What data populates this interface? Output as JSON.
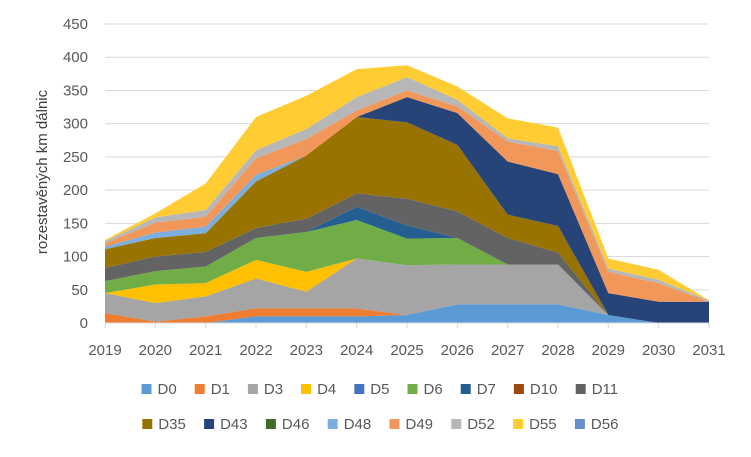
{
  "chart_data": {
    "type": "area",
    "stacked": true,
    "ylabel": "rozestavěných km dálnic",
    "xlabel": "",
    "title": "",
    "ylim": [
      0,
      450
    ],
    "yticks": [
      0,
      50,
      100,
      150,
      200,
      250,
      300,
      350,
      400,
      450
    ],
    "grid": true,
    "legend_position": "bottom",
    "x": [
      "2019",
      "2020",
      "2021",
      "2022",
      "2023",
      "2024",
      "2025",
      "2026",
      "2027",
      "2028",
      "2029",
      "2030",
      "2031"
    ],
    "series": [
      {
        "name": "D0",
        "color": "#5B9BD5",
        "values": [
          0,
          0,
          0,
          10,
          10,
          10,
          12,
          28,
          28,
          28,
          12,
          0,
          0
        ]
      },
      {
        "name": "D1",
        "color": "#ED7D31",
        "values": [
          15,
          2,
          10,
          12,
          12,
          12,
          0,
          0,
          0,
          0,
          0,
          0,
          0
        ]
      },
      {
        "name": "D3",
        "color": "#A5A5A5",
        "values": [
          30,
          28,
          30,
          45,
          25,
          75,
          75,
          60,
          60,
          60,
          0,
          0,
          0
        ]
      },
      {
        "name": "D4",
        "color": "#FFC000",
        "values": [
          0,
          28,
          20,
          28,
          30,
          0,
          0,
          0,
          0,
          0,
          0,
          0,
          0
        ]
      },
      {
        "name": "D5",
        "color": "#4472C4",
        "values": [
          0,
          0,
          0,
          0,
          0,
          0,
          0,
          0,
          0,
          0,
          0,
          0,
          0
        ]
      },
      {
        "name": "D6",
        "color": "#70AD47",
        "values": [
          18,
          20,
          25,
          33,
          60,
          58,
          40,
          40,
          0,
          0,
          0,
          0,
          0
        ]
      },
      {
        "name": "D7",
        "color": "#255E91",
        "values": [
          0,
          0,
          0,
          0,
          0,
          20,
          20,
          0,
          0,
          0,
          0,
          0,
          0
        ]
      },
      {
        "name": "D10",
        "color": "#9E480E",
        "values": [
          0,
          0,
          0,
          0,
          0,
          0,
          0,
          0,
          0,
          0,
          0,
          0,
          0
        ]
      },
      {
        "name": "D11",
        "color": "#636363",
        "values": [
          20,
          22,
          22,
          15,
          20,
          20,
          40,
          40,
          40,
          18,
          0,
          0,
          0
        ]
      },
      {
        "name": "D35",
        "color": "#997300",
        "values": [
          28,
          28,
          28,
          70,
          95,
          115,
          115,
          100,
          35,
          40,
          0,
          0,
          0
        ]
      },
      {
        "name": "D43",
        "color": "#264478",
        "values": [
          0,
          0,
          0,
          0,
          0,
          0,
          38,
          48,
          80,
          78,
          33,
          32,
          32
        ]
      },
      {
        "name": "D46",
        "color": "#43682B",
        "values": [
          0,
          0,
          0,
          0,
          0,
          0,
          0,
          0,
          0,
          0,
          0,
          0,
          0
        ]
      },
      {
        "name": "D48",
        "color": "#7CAFDD",
        "values": [
          4,
          8,
          10,
          10,
          0,
          0,
          0,
          0,
          0,
          0,
          0,
          0,
          0
        ]
      },
      {
        "name": "D49",
        "color": "#F1975A",
        "values": [
          5,
          15,
          15,
          25,
          25,
          10,
          10,
          10,
          30,
          35,
          32,
          28,
          0
        ]
      },
      {
        "name": "D52",
        "color": "#B7B7B7",
        "values": [
          3,
          8,
          10,
          12,
          15,
          20,
          20,
          10,
          5,
          7,
          5,
          5,
          2
        ]
      },
      {
        "name": "D55",
        "color": "#FFCD33",
        "values": [
          2,
          6,
          40,
          50,
          50,
          42,
          18,
          20,
          30,
          28,
          15,
          15,
          0
        ]
      },
      {
        "name": "D56",
        "color": "#698ED0",
        "values": [
          0,
          0,
          0,
          0,
          0,
          0,
          0,
          0,
          0,
          0,
          0,
          0,
          0
        ]
      }
    ]
  }
}
